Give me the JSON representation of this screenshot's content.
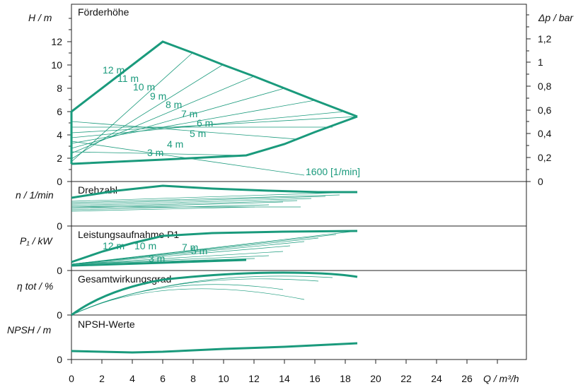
{
  "colors": {
    "curve": "#1a9a7c",
    "axis": "#222222",
    "text": "#111111"
  },
  "panels": {
    "h": {
      "title": "Förderhöhe",
      "ylabel": "H  /  m",
      "ylabel2": "Δp  /  bar",
      "ticks": [
        "2",
        "4",
        "6",
        "8",
        "10",
        "12"
      ],
      "ticks_bar": [
        "0",
        "0,2",
        "0,4",
        "0,6",
        "0,8",
        "1",
        "1,2"
      ]
    },
    "n": {
      "title": "Drehzahl",
      "ylabel": "n  / 1/min",
      "zero": "0"
    },
    "p": {
      "title": "Leistungsaufnahme P1",
      "ylabel": "P₁ / kW",
      "zero": "0"
    },
    "eta": {
      "title": "Gesamtwirkungsgrad",
      "ylabel": "η tot  / %",
      "zero": "0"
    },
    "npsh": {
      "title": "NPSH-Werte",
      "ylabel": "NPSH  / m",
      "zero": "0"
    }
  },
  "h_zero": "0",
  "xaxis": {
    "ticks": [
      "0",
      "2",
      "4",
      "6",
      "8",
      "10",
      "12",
      "14",
      "16",
      "18",
      "20",
      "22",
      "24",
      "26"
    ],
    "label": "Q  / m³/h"
  },
  "labels": {
    "head": [
      "12 m",
      "11 m",
      "10 m",
      "9 m",
      "8 m",
      "7 m",
      "6 m",
      "5 m",
      "4 m",
      "3 m"
    ],
    "speed": "1600 [1/min]",
    "power": [
      "12 m",
      "10 m",
      "7 m",
      "5 m",
      "3 m"
    ]
  },
  "chart_data": [
    {
      "type": "line",
      "title": "Förderhöhe",
      "xlabel": "Q / m³/h",
      "ylabel": "H / m",
      "ylim": [
        0,
        14
      ],
      "xlim": [
        0,
        30
      ],
      "series": [
        {
          "x": [
            0,
            0,
            6,
            8,
            10,
            12,
            14,
            16,
            19
          ],
          "y": [
            1.5,
            6,
            12,
            11,
            10,
            9,
            8,
            7,
            5.6
          ]
        },
        {
          "x": [
            0,
            6,
            11.5,
            14,
            16,
            19
          ],
          "y": [
            1.5,
            1.9,
            2.3,
            3.1,
            3.9,
            5.6
          ]
        }
      ]
    },
    {
      "type": "line",
      "title": "Drehzahl",
      "ylabel": "n / 1/min",
      "series": [
        {
          "x": [
            0,
            3,
            6,
            9,
            12,
            15,
            18,
            19
          ],
          "y": [
            0.65,
            0.78,
            0.9,
            0.82,
            0.75,
            0.7,
            0.67,
            0.67
          ]
        }
      ]
    },
    {
      "type": "line",
      "title": "Leistungsaufnahme P1",
      "ylabel": "P₁ / kW",
      "series": [
        {
          "x": [
            0,
            2,
            4,
            6,
            8,
            10,
            12,
            14,
            16,
            19
          ],
          "y": [
            0.2,
            0.45,
            0.65,
            0.8,
            0.85,
            0.88,
            0.9,
            0.92,
            0.94,
            0.95
          ]
        },
        {
          "x": [
            0,
            4,
            8,
            11.5
          ],
          "y": [
            0.15,
            0.18,
            0.22,
            0.25
          ]
        }
      ]
    },
    {
      "type": "line",
      "title": "Gesamtwirkungsgrad",
      "ylabel": "η tot / %",
      "series": [
        {
          "x": [
            0,
            2,
            4,
            6,
            8,
            10,
            12,
            14,
            16,
            19
          ],
          "y": [
            0,
            0.5,
            0.68,
            0.8,
            0.86,
            0.9,
            0.93,
            0.95,
            0.94,
            0.85
          ]
        }
      ]
    },
    {
      "type": "line",
      "title": "NPSH-Werte",
      "ylabel": "NPSH / m",
      "series": [
        {
          "x": [
            0,
            4,
            6,
            10,
            14,
            19
          ],
          "y": [
            0.25,
            0.22,
            0.24,
            0.32,
            0.42,
            0.55
          ]
        }
      ]
    }
  ]
}
